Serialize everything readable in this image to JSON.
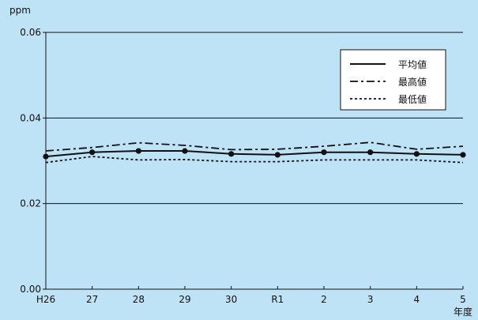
{
  "chart_data": {
    "type": "line",
    "ylabel": "ppm",
    "xlabel": "年度",
    "categories": [
      "H26",
      "27",
      "28",
      "29",
      "30",
      "R1",
      "2",
      "3",
      "4",
      "5"
    ],
    "ylim": [
      0.0,
      0.06
    ],
    "yticks": [
      "0.00",
      "0.02",
      "0.04",
      "0.06"
    ],
    "grid": "horizontal",
    "legend_position": "top-right",
    "series": [
      {
        "name": "平均値",
        "style": "solid",
        "markers": true,
        "values": [
          0.031,
          0.032,
          0.0323,
          0.0323,
          0.0316,
          0.0314,
          0.032,
          0.032,
          0.0316,
          0.0314
        ]
      },
      {
        "name": "最高値",
        "style": "dash-dot",
        "markers": false,
        "values": [
          0.0323,
          0.0331,
          0.0342,
          0.0336,
          0.0326,
          0.0327,
          0.0334,
          0.0343,
          0.0327,
          0.0334
        ]
      },
      {
        "name": "最低値",
        "style": "dotted",
        "markers": false,
        "values": [
          0.0296,
          0.031,
          0.0302,
          0.0303,
          0.0298,
          0.0298,
          0.0302,
          0.0302,
          0.0302,
          0.0296
        ]
      }
    ],
    "colors": {
      "background": "#bfe3f6",
      "line": "#111111",
      "legend_box": "#ffffff"
    }
  }
}
